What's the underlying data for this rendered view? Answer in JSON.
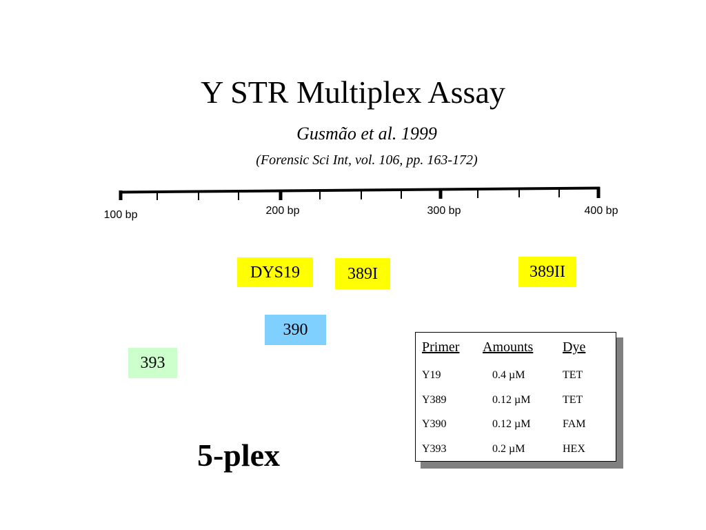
{
  "title": "Y STR Multiplex Assay",
  "citation": "Gusmão et al. 1999",
  "journal": "(Forensic Sci Int, vol. 106, pp. 163-172)",
  "scale": {
    "labels": [
      "100 bp",
      "200 bp",
      "300 bp",
      "400 bp"
    ]
  },
  "markers": {
    "dys19": "DYS19",
    "y389i": "389I",
    "y389ii": "389II",
    "y390": "390",
    "y393": "393"
  },
  "colors": {
    "yellow": "#ffff00",
    "blue": "#7fcfff",
    "green": "#ccffcc"
  },
  "plex_label": "5-plex",
  "table": {
    "headers": [
      "Primer",
      "Amounts",
      "Dye"
    ],
    "rows": [
      [
        "Y19",
        "0.4 µM",
        "TET"
      ],
      [
        "Y389",
        "0.12 µM",
        "TET"
      ],
      [
        "Y390",
        "0.12 µM",
        "FAM"
      ],
      [
        "Y393",
        "0.2 µM",
        "HEX"
      ]
    ]
  }
}
